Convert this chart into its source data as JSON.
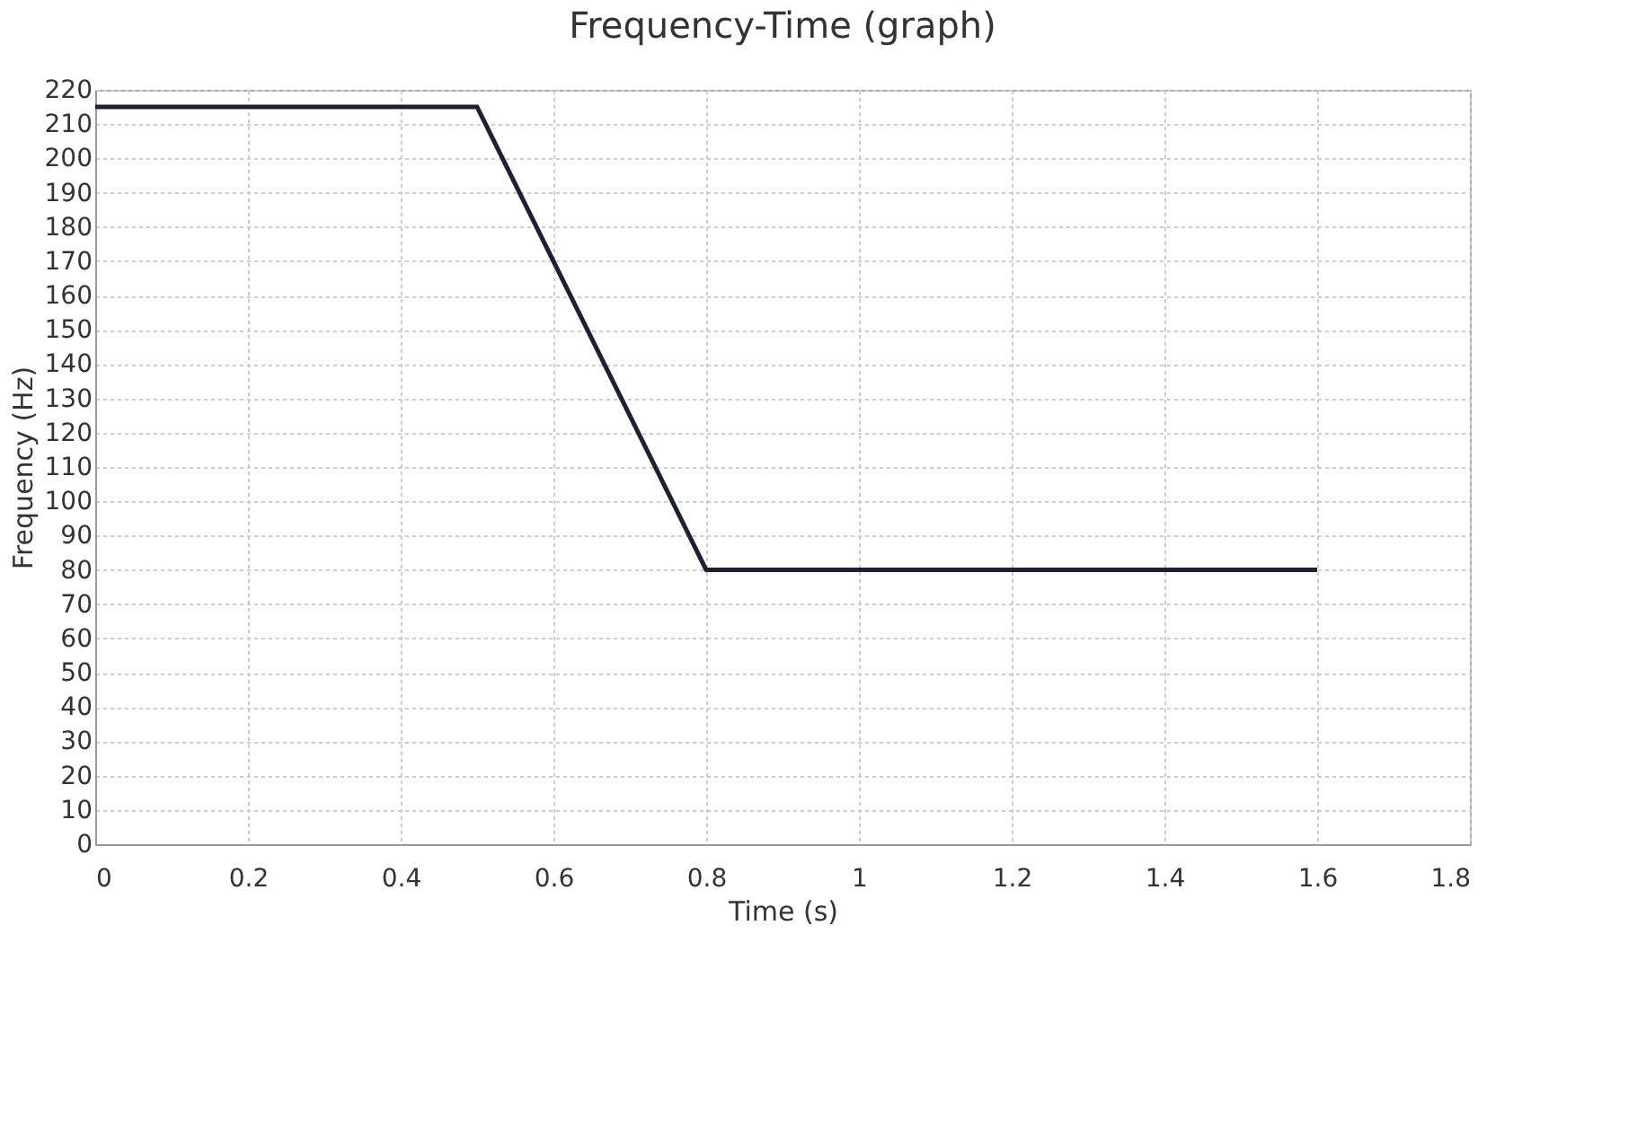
{
  "chart_data": {
    "type": "line",
    "title": "Frequency-Time (graph)",
    "xlabel": "Time (s)",
    "ylabel": "Frequency (Hz)",
    "series": [
      {
        "color": "#1c2233",
        "x": [
          0,
          0.5,
          0.8,
          1.6
        ],
        "values": [
          215,
          215,
          80,
          80
        ]
      }
    ],
    "xlim": [
      0,
      1.8
    ],
    "xticks": [
      0,
      0.2,
      0.4,
      0.6,
      0.8,
      1,
      1.2,
      1.4,
      1.6,
      1.8
    ],
    "ylim": [
      0,
      220
    ],
    "yticks": [
      0,
      10,
      20,
      30,
      40,
      50,
      60,
      70,
      80,
      90,
      100,
      110,
      120,
      130,
      140,
      150,
      160,
      170,
      180,
      190,
      200,
      210,
      220
    ],
    "grid": true,
    "legend": false,
    "marker": "none",
    "line_style": "solid"
  }
}
